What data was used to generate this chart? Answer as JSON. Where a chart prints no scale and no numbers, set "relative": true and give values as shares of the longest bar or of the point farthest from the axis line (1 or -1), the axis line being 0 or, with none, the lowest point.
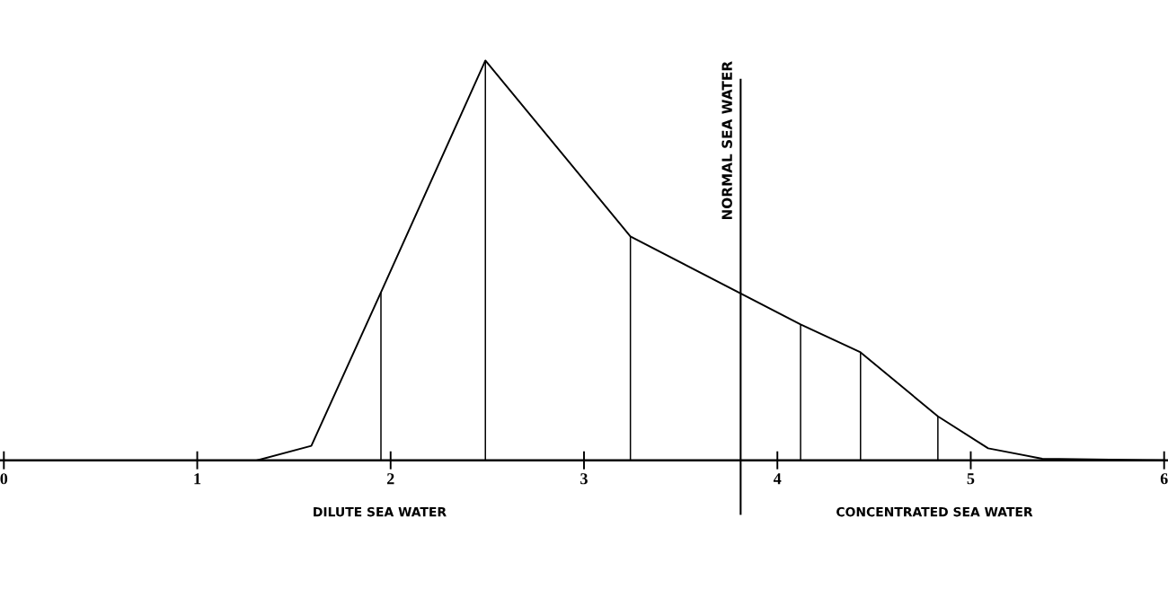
{
  "chart_data": {
    "type": "line",
    "relative": true,
    "xlim": [
      -0.02,
      6.02
    ],
    "xticks": [
      0,
      1,
      2,
      3,
      4,
      5,
      6
    ],
    "series": [
      {
        "color": "#000000",
        "x": [
          1.31,
          1.59,
          1.95,
          2.49,
          3.24,
          4.12,
          4.43,
          4.83,
          5.09,
          5.37,
          6.0
        ],
        "values": [
          0,
          0.036,
          0.42,
          1,
          0.56,
          0.34,
          0.27,
          0.11,
          0.03,
          0.004,
          0
        ]
      },
      {
        "type": "bar",
        "color": "#000000",
        "x": [
          1.95,
          2.49,
          3.24,
          4.12,
          4.43,
          4.83
        ],
        "values": [
          0.42,
          1,
          0.56,
          0.34,
          0.27,
          0.11
        ]
      }
    ],
    "ref_lines": [
      {
        "axis": "x",
        "value": 3.81,
        "label": "NORMAL SEA WATER",
        "color": "#000000"
      }
    ],
    "annotations": [
      "DILUTE SEA WATER",
      "CONCENTRATED SEA WATER"
    ],
    "grid": false,
    "legend": false,
    "marker": "none",
    "line_style": "solid"
  }
}
